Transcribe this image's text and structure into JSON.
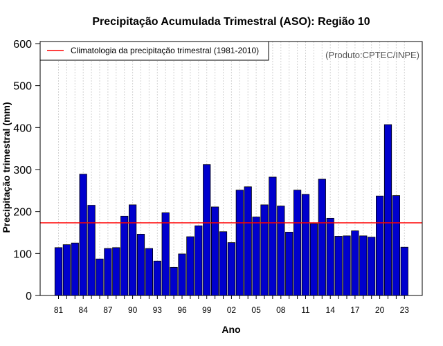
{
  "chart_data": {
    "type": "bar",
    "title": "Precipitação Acumulada Trimestral (ASO): Região 10",
    "xlabel": "Ano",
    "ylabel": "Precipitação trimestral (mm)",
    "ylim": [
      0,
      600
    ],
    "yticks": [
      0,
      100,
      200,
      300,
      400,
      500,
      600
    ],
    "years": [
      1981,
      1982,
      1983,
      1984,
      1985,
      1986,
      1987,
      1988,
      1989,
      1990,
      1991,
      1992,
      1993,
      1994,
      1995,
      1996,
      1997,
      1998,
      1999,
      2000,
      2001,
      2002,
      2003,
      2004,
      2005,
      2006,
      2007,
      2008,
      2009,
      2010,
      2011,
      2012,
      2013,
      2014,
      2015,
      2016,
      2017,
      2018,
      2019,
      2020,
      2021,
      2022,
      2023
    ],
    "values": [
      114,
      121,
      125,
      289,
      215,
      87,
      112,
      114,
      189,
      216,
      146,
      112,
      82,
      197,
      67,
      99,
      140,
      166,
      312,
      211,
      152,
      126,
      251,
      259,
      187,
      216,
      282,
      213,
      151,
      251,
      241,
      171,
      277,
      184,
      141,
      142,
      154,
      142,
      139,
      237,
      407,
      238,
      115
    ],
    "xtick_labels": [
      "81",
      "84",
      "87",
      "90",
      "93",
      "96",
      "99",
      "02",
      "05",
      "08",
      "11",
      "14",
      "17",
      "20",
      "23"
    ],
    "xtick_years": [
      1981,
      1984,
      1987,
      1990,
      1993,
      1996,
      1999,
      2002,
      2005,
      2008,
      2011,
      2014,
      2017,
      2020,
      2023
    ],
    "climatology": {
      "value": 173,
      "label": "Climatologia da precipitação trimestral (1981-2010)",
      "color": "#ff0000"
    },
    "credit": "(Produto:CPTEC/INPE)",
    "bar_color": "#0000cd",
    "grid": "vertical-dotted",
    "legend_position": "top-left"
  }
}
